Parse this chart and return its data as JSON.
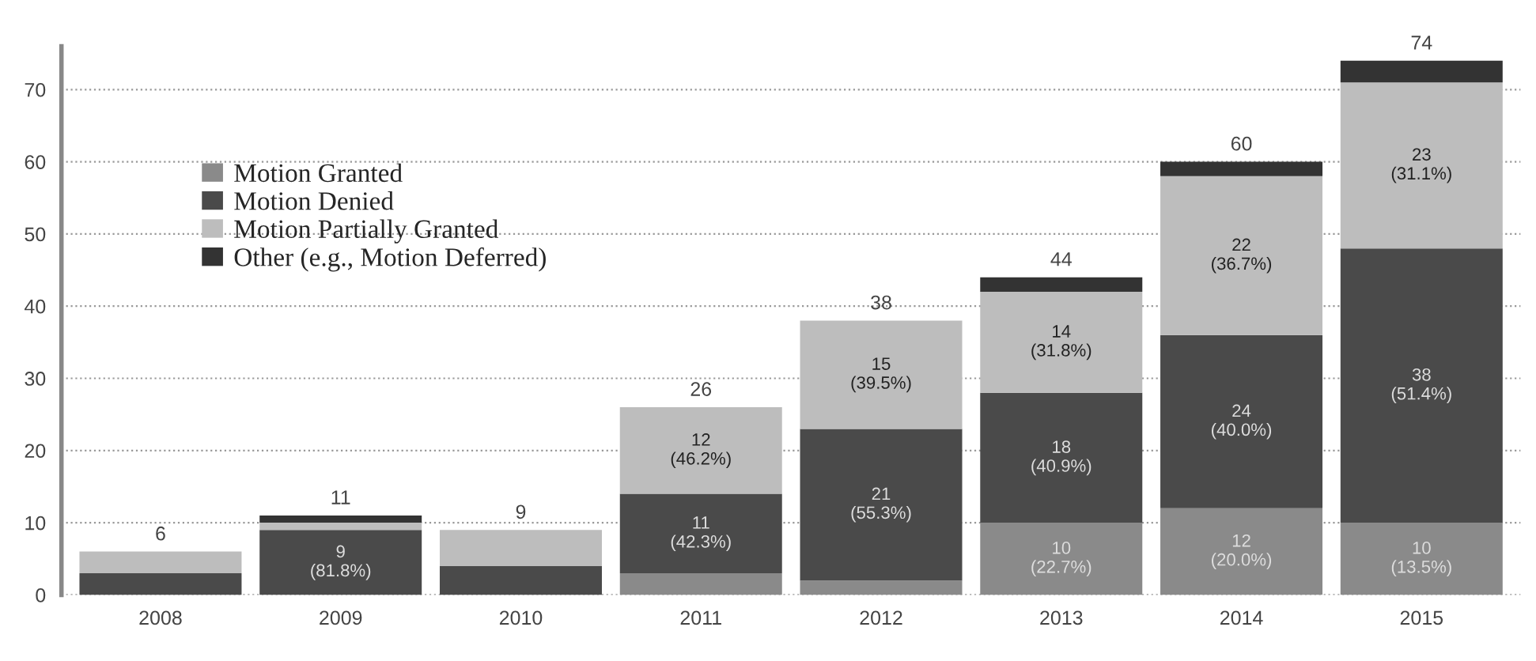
{
  "chart_data": {
    "type": "bar",
    "stacked": true,
    "categories": [
      "2008",
      "2009",
      "2010",
      "2011",
      "2012",
      "2013",
      "2014",
      "2015"
    ],
    "series": [
      {
        "name": "Motion Granted",
        "color": "#8a8a8a",
        "values": [
          0,
          0,
          0,
          3,
          2,
          10,
          12,
          10
        ],
        "value_labels": [
          null,
          null,
          null,
          null,
          null,
          "10\n(22.7%)",
          "12\n(20.0%)",
          "10\n(13.5%)"
        ]
      },
      {
        "name": "Motion Denied",
        "color": "#4a4a4a",
        "values": [
          3,
          9,
          4,
          11,
          21,
          18,
          24,
          38
        ],
        "value_labels": [
          null,
          "9\n(81.8%)",
          null,
          "11\n(42.3%)",
          "21\n(55.3%)",
          "18\n(40.9%)",
          "24\n(40.0%)",
          "38\n(51.4%)"
        ]
      },
      {
        "name": "Motion Partially Granted",
        "color": "#bdbdbd",
        "values": [
          3,
          1,
          5,
          12,
          15,
          14,
          22,
          23
        ],
        "value_labels": [
          null,
          null,
          null,
          "12\n(46.2%)",
          "15\n(39.5%)",
          "14\n(31.8%)",
          "22\n(36.7%)",
          "23\n(31.1%)"
        ]
      },
      {
        "name": "Other (e.g., Motion Deferred)",
        "color": "#333333",
        "values": [
          0,
          1,
          0,
          0,
          0,
          2,
          2,
          3
        ]
      }
    ],
    "totals": [
      "6",
      "11",
      "9",
      "26",
      "38",
      "44",
      "60",
      "74"
    ],
    "ylim": [
      0,
      76
    ],
    "yticks": [
      0,
      10,
      20,
      30,
      40,
      50,
      60,
      70
    ],
    "grid": "y",
    "legend": "top left"
  }
}
